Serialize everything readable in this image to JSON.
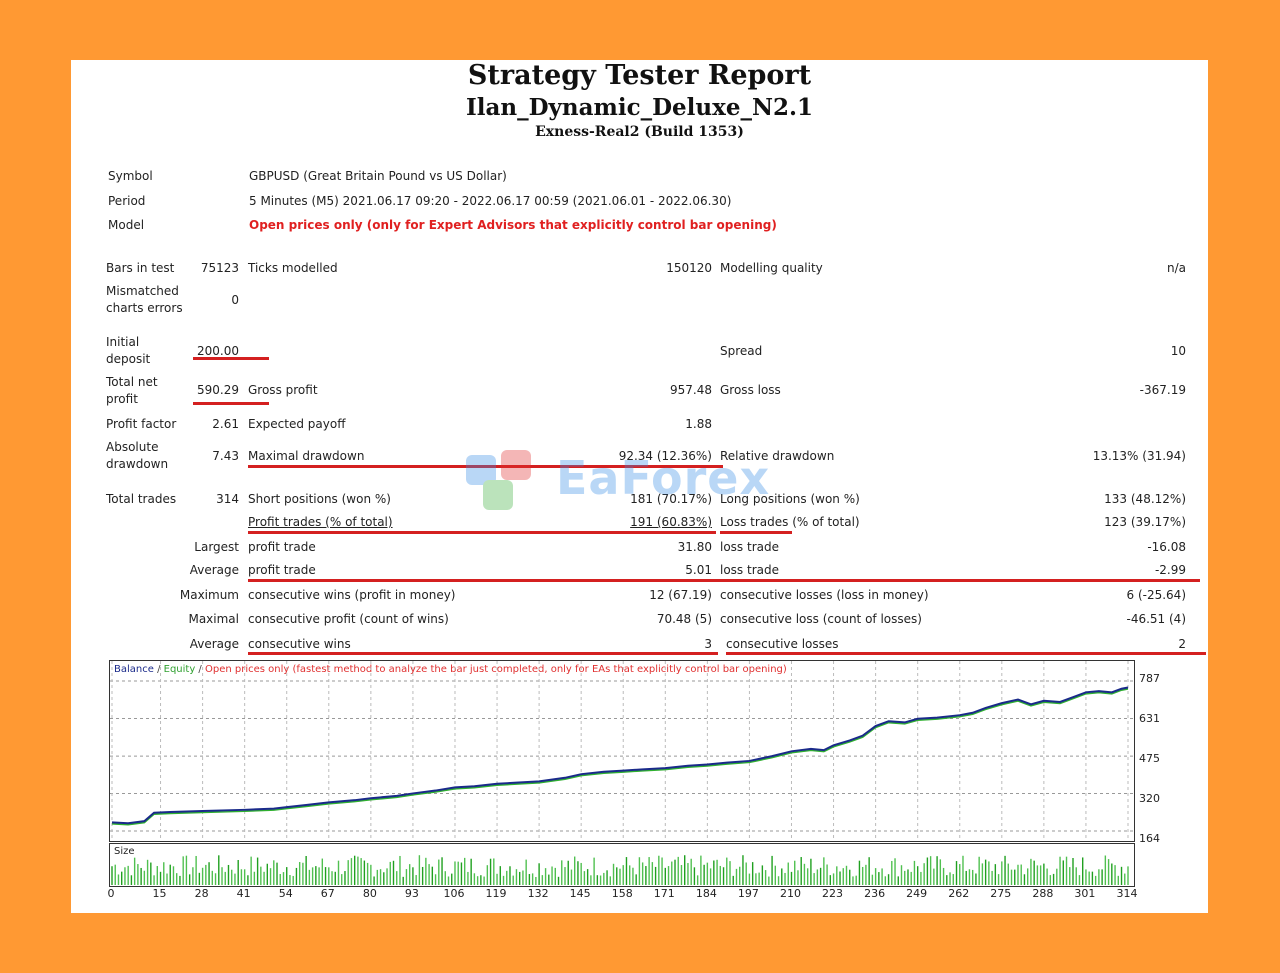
{
  "report": {
    "title": "Strategy Tester Report",
    "ea_name": "Ilan_Dynamic_Deluxe_N2.1",
    "server": "Exness-Real2 (Build 1353)"
  },
  "info": {
    "symbol_label": "Symbol",
    "symbol_value": "GBPUSD (Great Britain Pound vs US Dollar)",
    "period_label": "Period",
    "period_value": "5 Minutes (M5) 2021.06.17 09:20 - 2022.06.17 00:59 (2021.06.01 - 2022.06.30)",
    "model_label": "Model",
    "model_value": "Open prices only (only for Expert Advisors that explicitly control bar opening)"
  },
  "stats": {
    "bars_label": "Bars in test",
    "bars_value": "75123",
    "ticks_label": "Ticks modelled",
    "ticks_value": "150120",
    "quality_label": "Modelling quality",
    "quality_value": "n/a",
    "mismatch_label_1": "Mismatched",
    "mismatch_label_2": "charts errors",
    "mismatch_value": "0",
    "deposit_label_1": "Initial",
    "deposit_label_2": "deposit",
    "deposit_value": "200.00",
    "spread_label": "Spread",
    "spread_value": "10",
    "netprofit_label_1": "Total net",
    "netprofit_label_2": "profit",
    "netprofit_value": "590.29",
    "grossprofit_label": "Gross profit",
    "grossprofit_value": "957.48",
    "grossloss_label": "Gross loss",
    "grossloss_value": "-367.19",
    "pf_label": "Profit factor",
    "pf_value": "2.61",
    "payoff_label": "Expected payoff",
    "payoff_value": "1.88",
    "absdd_label_1": "Absolute",
    "absdd_label_2": "drawdown",
    "absdd_value": "7.43",
    "maxdd_label": "Maximal drawdown",
    "maxdd_value": "92.34 (12.36%)",
    "reldd_label": "Relative drawdown",
    "reldd_value": "13.13% (31.94)",
    "trades_label": "Total trades",
    "trades_value": "314",
    "short_label": "Short positions (won %)",
    "short_value": "181 (70.17%)",
    "long_label": "Long positions (won %)",
    "long_value": "133 (48.12%)",
    "profit_trades_label": "Profit trades (% of total)",
    "profit_trades_value": "191 (60.83%)",
    "loss_trades_label": "Loss trades (% of total)",
    "loss_trades_value": "123 (39.17%)",
    "largest_label": "Largest",
    "largest_profit_label": "profit trade",
    "largest_profit_value": "31.80",
    "largest_loss_label": "loss trade",
    "largest_loss_value": "-16.08",
    "average_label": "Average",
    "avg_profit_label": "profit trade",
    "avg_profit_value": "5.01",
    "avg_loss_label": "loss trade",
    "avg_loss_value": "-2.99",
    "maximum_label": "Maximum",
    "max_wins_label": "consecutive wins (profit in money)",
    "max_wins_value": "12 (67.19)",
    "max_losses_label": "consecutive losses (loss in money)",
    "max_losses_value": "6 (-25.64)",
    "maximal_label": "Maximal",
    "maximal_profit_label": "consecutive profit (count of wins)",
    "maximal_profit_value": "70.48 (5)",
    "maximal_loss_label": "consecutive loss (count of losses)",
    "maximal_loss_value": "-46.51 (4)",
    "average2_label": "Average",
    "avg_wins_label": "consecutive wins",
    "avg_wins_value": "3",
    "avg_losses_label": "consecutive losses",
    "avg_losses_value": "2"
  },
  "chart_legend": {
    "balance": "Balance",
    "sep1": " / ",
    "equity": "Equity",
    "sep2": " / ",
    "note": "Open prices only (fastest method to analyze the bar just completed, only for EAs that explicitly control bar opening)"
  },
  "size_label": "Size",
  "watermark": "EaForex",
  "chart_data": {
    "type": "line",
    "series": [
      {
        "name": "Balance"
      },
      {
        "name": "Equity"
      }
    ],
    "y_ticks": [
      "787",
      "631",
      "475",
      "320",
      "164"
    ],
    "x_ticks": [
      "0",
      "15",
      "28",
      "41",
      "54",
      "67",
      "80",
      "93",
      "106",
      "119",
      "132",
      "145",
      "158",
      "171",
      "184",
      "197",
      "210",
      "223",
      "236",
      "249",
      "262",
      "275",
      "288",
      "301",
      "314"
    ],
    "ylim": [
      164,
      787
    ],
    "xlim": [
      0,
      314
    ],
    "balance_points": [
      [
        0,
        200
      ],
      [
        5,
        196
      ],
      [
        10,
        205
      ],
      [
        13,
        240
      ],
      [
        18,
        243
      ],
      [
        28,
        247
      ],
      [
        41,
        252
      ],
      [
        50,
        257
      ],
      [
        54,
        263
      ],
      [
        60,
        272
      ],
      [
        67,
        283
      ],
      [
        75,
        292
      ],
      [
        80,
        300
      ],
      [
        88,
        310
      ],
      [
        93,
        320
      ],
      [
        100,
        332
      ],
      [
        106,
        345
      ],
      [
        112,
        350
      ],
      [
        119,
        360
      ],
      [
        125,
        365
      ],
      [
        132,
        370
      ],
      [
        140,
        385
      ],
      [
        145,
        400
      ],
      [
        152,
        410
      ],
      [
        158,
        415
      ],
      [
        164,
        420
      ],
      [
        171,
        425
      ],
      [
        178,
        435
      ],
      [
        184,
        440
      ],
      [
        190,
        448
      ],
      [
        197,
        455
      ],
      [
        204,
        475
      ],
      [
        210,
        495
      ],
      [
        216,
        505
      ],
      [
        220,
        500
      ],
      [
        223,
        520
      ],
      [
        228,
        540
      ],
      [
        232,
        560
      ],
      [
        236,
        600
      ],
      [
        240,
        620
      ],
      [
        245,
        615
      ],
      [
        249,
        630
      ],
      [
        255,
        635
      ],
      [
        262,
        645
      ],
      [
        266,
        655
      ],
      [
        270,
        675
      ],
      [
        275,
        695
      ],
      [
        280,
        710
      ],
      [
        284,
        690
      ],
      [
        288,
        705
      ],
      [
        293,
        700
      ],
      [
        297,
        720
      ],
      [
        301,
        740
      ],
      [
        305,
        745
      ],
      [
        309,
        740
      ],
      [
        312,
        755
      ],
      [
        314,
        760
      ]
    ]
  }
}
